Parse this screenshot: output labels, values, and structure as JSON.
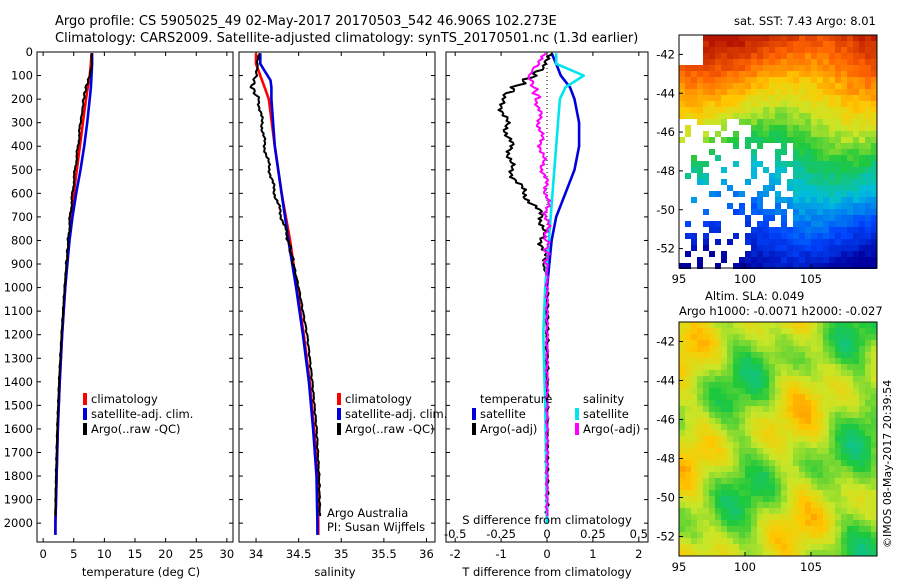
{
  "header": {
    "line1": "Argo profile: CS 5905025_49 02-May-2017 20170503_542 46.906S 102.273E",
    "line2": "Climatology: CARS2009. Satellite-adjusted climatology: synTS_20170501.nc (1.3d earlier)"
  },
  "credit": "Argo Australia",
  "pi": "PI: Susan Wijffels",
  "side_stamp": "©IMOS 08-May-2017 20:39:54",
  "colors": {
    "clim": "#ff0000",
    "sat": "#0000dd",
    "argo": "#000000",
    "sal_sat": "#00e5ee",
    "sal_argo": "#ff00ff"
  },
  "chart_data": [
    {
      "type": "line",
      "xlabel": "temperature (deg C)",
      "xlim": [
        -1,
        31
      ],
      "ylim": [
        0,
        2080
      ],
      "xticks": [
        "0",
        "5",
        "10",
        "15",
        "20",
        "25",
        "30"
      ],
      "xtick_values": [
        0,
        5,
        10,
        15,
        20,
        25,
        30
      ],
      "yticks": [
        "0",
        "100",
        "200",
        "300",
        "400",
        "500",
        "600",
        "700",
        "800",
        "900",
        "1000",
        "1100",
        "1200",
        "1300",
        "1400",
        "1500",
        "1600",
        "1700",
        "1800",
        "1900",
        "2000"
      ],
      "ytick_values": [
        0,
        100,
        200,
        300,
        400,
        500,
        600,
        700,
        800,
        900,
        1000,
        1100,
        1200,
        1300,
        1400,
        1500,
        1600,
        1700,
        1800,
        1900,
        2000
      ],
      "legend": [
        "climatology",
        "satellite-adj. clim.",
        "Argo(..raw -QC)"
      ],
      "series": [
        {
          "name": "climatology",
          "color": "clim",
          "depth": [
            5,
            50,
            100,
            150,
            200,
            300,
            400,
            500,
            600,
            700,
            800,
            1000,
            1200,
            1400,
            1600,
            1800,
            2000,
            2050
          ],
          "values": [
            7.9,
            7.8,
            7.6,
            7.3,
            7.0,
            6.5,
            6.0,
            5.5,
            5.0,
            4.6,
            4.2,
            3.6,
            3.1,
            2.7,
            2.4,
            2.2,
            2.0,
            2.0
          ]
        },
        {
          "name": "satellite-adj. clim.",
          "color": "sat",
          "depth": [
            5,
            50,
            100,
            150,
            200,
            300,
            400,
            500,
            600,
            700,
            800,
            1000,
            1200,
            1400,
            1600,
            1800,
            2000,
            2050
          ],
          "values": [
            8.0,
            8.0,
            7.9,
            7.8,
            7.6,
            7.2,
            6.7,
            6.1,
            5.4,
            4.8,
            4.3,
            3.6,
            3.1,
            2.7,
            2.4,
            2.2,
            2.0,
            2.0
          ]
        },
        {
          "name": "Argo(..raw -QC)",
          "color": "argo",
          "depth": [
            5,
            50,
            100,
            150,
            200,
            250,
            300,
            400,
            500,
            600,
            700,
            800,
            1000,
            1200,
            1400,
            1600,
            1800,
            1970
          ],
          "values": [
            8.0,
            8.0,
            7.6,
            7.0,
            6.6,
            6.4,
            6.1,
            5.7,
            5.2,
            4.8,
            4.4,
            4.1,
            3.5,
            3.0,
            2.6,
            2.3,
            2.1,
            2.0
          ]
        }
      ]
    },
    {
      "type": "line",
      "xlabel": "salinity",
      "xlim": [
        33.8,
        36.1
      ],
      "ylim": [
        0,
        2080
      ],
      "xticks": [
        "34",
        "34.5",
        "35",
        "35.5",
        "36"
      ],
      "xtick_values": [
        34,
        34.5,
        35,
        35.5,
        36
      ],
      "legend": [
        "climatology",
        "satellite-adj. clim.",
        "Argo(..raw -QC)"
      ],
      "series": [
        {
          "name": "climatology",
          "color": "clim",
          "depth": [
            5,
            50,
            100,
            150,
            200,
            400,
            600,
            800,
            1000,
            1200,
            1400,
            1600,
            1800,
            2000,
            2050
          ],
          "values": [
            34.0,
            34.0,
            34.05,
            34.1,
            34.15,
            34.22,
            34.3,
            34.4,
            34.48,
            34.56,
            34.63,
            34.68,
            34.72,
            34.73,
            34.73
          ]
        },
        {
          "name": "satellite-adj. clim.",
          "color": "sat",
          "depth": [
            5,
            50,
            80,
            120,
            150,
            200,
            400,
            600,
            800,
            1000,
            1200,
            1400,
            1600,
            1800,
            2000,
            2050
          ],
          "values": [
            34.05,
            34.05,
            34.1,
            34.17,
            34.18,
            34.18,
            34.22,
            34.3,
            34.38,
            34.47,
            34.55,
            34.62,
            34.67,
            34.71,
            34.72,
            34.72
          ]
        },
        {
          "name": "Argo(..raw -QC)",
          "color": "argo",
          "depth": [
            5,
            50,
            100,
            150,
            200,
            300,
            400,
            500,
            600,
            700,
            800,
            1000,
            1200,
            1400,
            1600,
            1800,
            1970
          ],
          "values": [
            34.05,
            34.02,
            34.0,
            33.95,
            34.03,
            34.07,
            34.1,
            34.16,
            34.22,
            34.3,
            34.38,
            34.5,
            34.6,
            34.66,
            34.71,
            34.74,
            34.75
          ]
        }
      ]
    },
    {
      "type": "line",
      "xlabel": "T difference from climatology",
      "x2label": "S difference from climatology",
      "xlim": [
        -2.2,
        2.2
      ],
      "ylim": [
        0,
        2080
      ],
      "xticks": [
        "-2",
        "-1",
        "0",
        "1",
        "2"
      ],
      "xtick_values": [
        -2,
        -1,
        0,
        1,
        2
      ],
      "x2ticks": [
        "-0.5",
        "-0.25",
        "0",
        "0.25",
        "0.5"
      ],
      "x2tick_values": [
        -0.5,
        -0.25,
        0,
        0.25,
        0.5
      ],
      "x2lim": [
        -0.55,
        0.55
      ],
      "legend_groups": [
        {
          "title": "temperature",
          "items": [
            "satellite",
            "Argo(-adj)"
          ]
        },
        {
          "title": "salinity",
          "items": [
            "satellite",
            "Argo(-adj)"
          ]
        }
      ],
      "series": [
        {
          "name": "temperature satellite",
          "color": "sat",
          "axis": "T",
          "depth": [
            5,
            50,
            100,
            150,
            200,
            300,
            400,
            500,
            600,
            700,
            800,
            900,
            1000,
            1200,
            1500,
            2000
          ],
          "values": [
            0.1,
            0.2,
            0.3,
            0.5,
            0.6,
            0.7,
            0.7,
            0.6,
            0.4,
            0.2,
            0.1,
            0.05,
            0.0,
            0.0,
            0.0,
            0.0
          ]
        },
        {
          "name": "temperature Argo(-adj)",
          "color": "argo",
          "axis": "T",
          "depth": [
            5,
            50,
            100,
            150,
            200,
            300,
            400,
            500,
            600,
            700,
            800,
            900,
            1000,
            1200,
            1500,
            1970
          ],
          "values": [
            0.1,
            0.0,
            -0.3,
            -0.7,
            -1.0,
            -0.9,
            -0.8,
            -0.8,
            -0.5,
            -0.1,
            -0.1,
            -0.05,
            0.0,
            0.0,
            0.0,
            0.0
          ]
        },
        {
          "name": "salinity satellite",
          "color": "sal_sat",
          "axis": "S",
          "depth": [
            5,
            50,
            100,
            150,
            200,
            300,
            400,
            500,
            600,
            700,
            800,
            1000,
            1200,
            1500,
            2000
          ],
          "values": [
            0.05,
            0.05,
            0.2,
            0.1,
            0.07,
            0.06,
            0.05,
            0.04,
            0.03,
            0.02,
            0.01,
            -0.01,
            -0.02,
            -0.01,
            0.0
          ]
        },
        {
          "name": "salinity Argo(-adj)",
          "color": "sal_argo",
          "axis": "S",
          "depth": [
            5,
            50,
            100,
            150,
            200,
            300,
            400,
            500,
            600,
            700,
            800,
            1000,
            1200,
            1500,
            1970
          ],
          "values": [
            0.0,
            -0.05,
            -0.1,
            -0.07,
            -0.05,
            -0.04,
            -0.03,
            -0.02,
            0.0,
            0.0,
            0.0,
            0.0,
            0.0,
            0.0,
            0.0
          ]
        }
      ]
    },
    {
      "type": "heatmap",
      "title": "sat. SST: 7.43  Argo: 8.01",
      "xlim": [
        95,
        110
      ],
      "ylim": [
        -53,
        -41
      ],
      "xticks": [
        "95",
        "100",
        "105"
      ],
      "xtick_values": [
        95,
        100,
        105
      ],
      "yticks": [
        "-42",
        "-44",
        "-46",
        "-48",
        "-50",
        "-52"
      ],
      "ytick_values": [
        -42,
        -44,
        -46,
        -48,
        -50,
        -52
      ],
      "marker": {
        "lon": 102.273,
        "lat": -46.906
      }
    },
    {
      "type": "heatmap",
      "title": "Altim. SLA: 0.049",
      "subtitle": "Argo h1000: -0.0071 h2000: -0.027",
      "xlim": [
        95,
        110
      ],
      "ylim": [
        -53,
        -41
      ],
      "xticks": [
        "95",
        "100",
        "105"
      ],
      "xtick_values": [
        95,
        100,
        105
      ],
      "yticks": [
        "-42",
        "-44",
        "-46",
        "-48",
        "-50",
        "-52"
      ],
      "ytick_values": [
        -42,
        -44,
        -46,
        -48,
        -50,
        -52
      ]
    }
  ]
}
